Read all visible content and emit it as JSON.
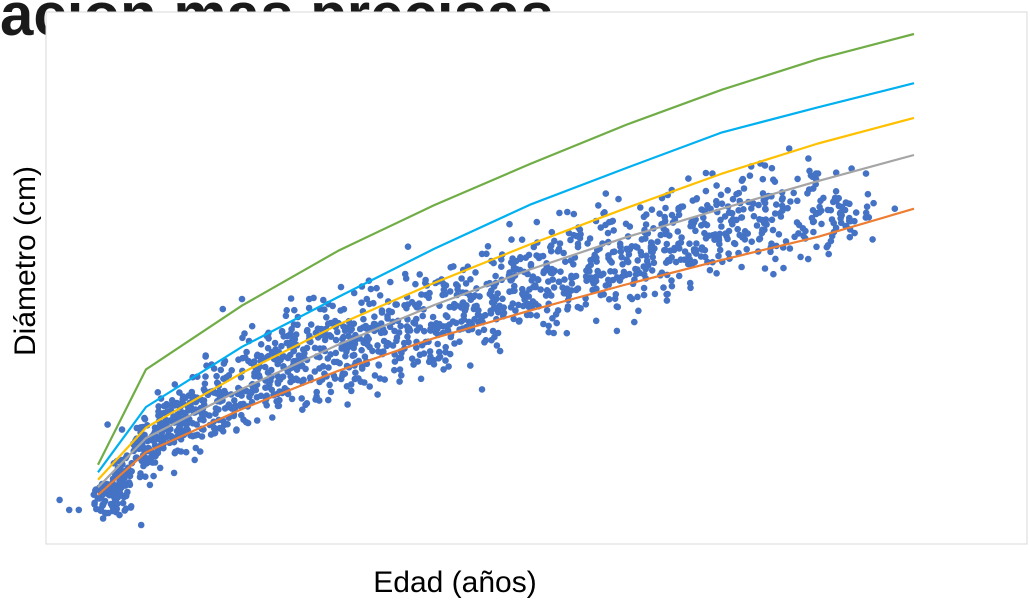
{
  "page": {
    "title": "ación más precisas"
  },
  "chart_data": {
    "type": "scatter",
    "xlabel": "Edad (años)",
    "ylabel": "Diámetro (cm)",
    "xlim": [
      0,
      100
    ],
    "ylim": [
      0,
      100
    ],
    "tick_labels": false,
    "grid": false,
    "colors": {
      "points": "#4472c4",
      "frame": "#d9d9d9",
      "curves": [
        "#70ad47",
        "#00b0f0",
        "#ffc000",
        "#a5a5a5",
        "#ed7d31"
      ]
    },
    "curves": [
      {
        "x": [
          5,
          10,
          20,
          30,
          40,
          50,
          60,
          70,
          80,
          90
        ],
        "y": [
          13.0,
          32.0,
          44.7,
          55.6,
          64.7,
          72.9,
          80.7,
          87.7,
          93.8,
          98.8
        ]
      },
      {
        "x": [
          5,
          10,
          20,
          30,
          40,
          50,
          60,
          70,
          80,
          90
        ],
        "y": [
          11.5,
          24.5,
          36.5,
          46.4,
          56.0,
          64.8,
          72.1,
          79.2,
          84.2,
          89.0
        ]
      },
      {
        "x": [
          5,
          10,
          20,
          30,
          40,
          50,
          60,
          70,
          80,
          90
        ],
        "y": [
          10.0,
          20.4,
          31.3,
          40.9,
          49.2,
          56.9,
          64.1,
          71.0,
          77.0,
          82.1
        ]
      },
      {
        "x": [
          5,
          10,
          20,
          30,
          40,
          50,
          60,
          70,
          80,
          90
        ],
        "y": [
          8.5,
          18.3,
          28.1,
          36.9,
          44.8,
          51.9,
          58.3,
          64.0,
          69.5,
          74.7
        ]
      },
      {
        "x": [
          5,
          10,
          20,
          30,
          40,
          50,
          60,
          70,
          80,
          90
        ],
        "y": [
          7.0,
          15.5,
          24.1,
          31.7,
          38.2,
          43.7,
          48.9,
          53.8,
          58.4,
          64.0
        ]
      }
    ],
    "scatter_clusters": [
      {
        "x": [
          4.5,
          7
        ],
        "y": [
          1,
          11
        ],
        "n": 45
      },
      {
        "x": [
          6.5,
          8.5
        ],
        "y": [
          2,
          18
        ],
        "n": 60
      },
      {
        "x": [
          8.5,
          11
        ],
        "y": [
          6,
          25
        ],
        "n": 70
      },
      {
        "x": [
          11,
          13.5
        ],
        "y": [
          10,
          31
        ],
        "n": 70
      },
      {
        "x": [
          13.5,
          16
        ],
        "y": [
          12,
          32
        ],
        "n": 70
      },
      {
        "x": [
          16,
          20
        ],
        "y": [
          14,
          38
        ],
        "n": 85
      },
      {
        "x": [
          20,
          24
        ],
        "y": [
          18,
          44
        ],
        "n": 90
      },
      {
        "x": [
          24,
          28
        ],
        "y": [
          20,
          49
        ],
        "n": 90
      },
      {
        "x": [
          28,
          32
        ],
        "y": [
          22,
          51
        ],
        "n": 95
      },
      {
        "x": [
          32,
          37
        ],
        "y": [
          24,
          54
        ],
        "n": 95
      },
      {
        "x": [
          37,
          42
        ],
        "y": [
          27,
          58
        ],
        "n": 95
      },
      {
        "x": [
          42,
          47
        ],
        "y": [
          30,
          60
        ],
        "n": 90
      },
      {
        "x": [
          47,
          52
        ],
        "y": [
          33,
          63
        ],
        "n": 95
      },
      {
        "x": [
          52,
          57
        ],
        "y": [
          35,
          67
        ],
        "n": 90
      },
      {
        "x": [
          57,
          62
        ],
        "y": [
          38,
          70
        ],
        "n": 85
      },
      {
        "x": [
          62,
          67
        ],
        "y": [
          42,
          72
        ],
        "n": 85
      },
      {
        "x": [
          67,
          72
        ],
        "y": [
          45,
          74
        ],
        "n": 80
      },
      {
        "x": [
          72,
          77
        ],
        "y": [
          48,
          76
        ],
        "n": 70
      },
      {
        "x": [
          77,
          82
        ],
        "y": [
          50,
          77
        ],
        "n": 55
      },
      {
        "x": [
          82,
          86
        ],
        "y": [
          55,
          70
        ],
        "n": 30
      }
    ],
    "scatter_outliers": {
      "x": [
        1,
        2,
        3,
        6,
        7.5,
        9.5,
        11.5,
        13,
        15,
        18,
        20,
        22,
        23.5,
        25.5,
        27,
        29,
        33,
        37,
        41,
        45,
        49,
        55,
        60,
        63.5,
        66.5,
        69,
        74,
        77,
        79,
        80,
        83.5,
        85,
        88,
        74.5,
        79.5,
        70,
        41,
        40,
        45,
        31
      ],
      "y": [
        6,
        4,
        4,
        21,
        20,
        1,
        18,
        29,
        26,
        44,
        46,
        37,
        36,
        38,
        46,
        45,
        46,
        51,
        49,
        55,
        54,
        57,
        61,
        63,
        70,
        71,
        73,
        76,
        74,
        71,
        72,
        71,
        64,
        64,
        68,
        65,
        32,
        33,
        28,
        25
      ]
    }
  }
}
